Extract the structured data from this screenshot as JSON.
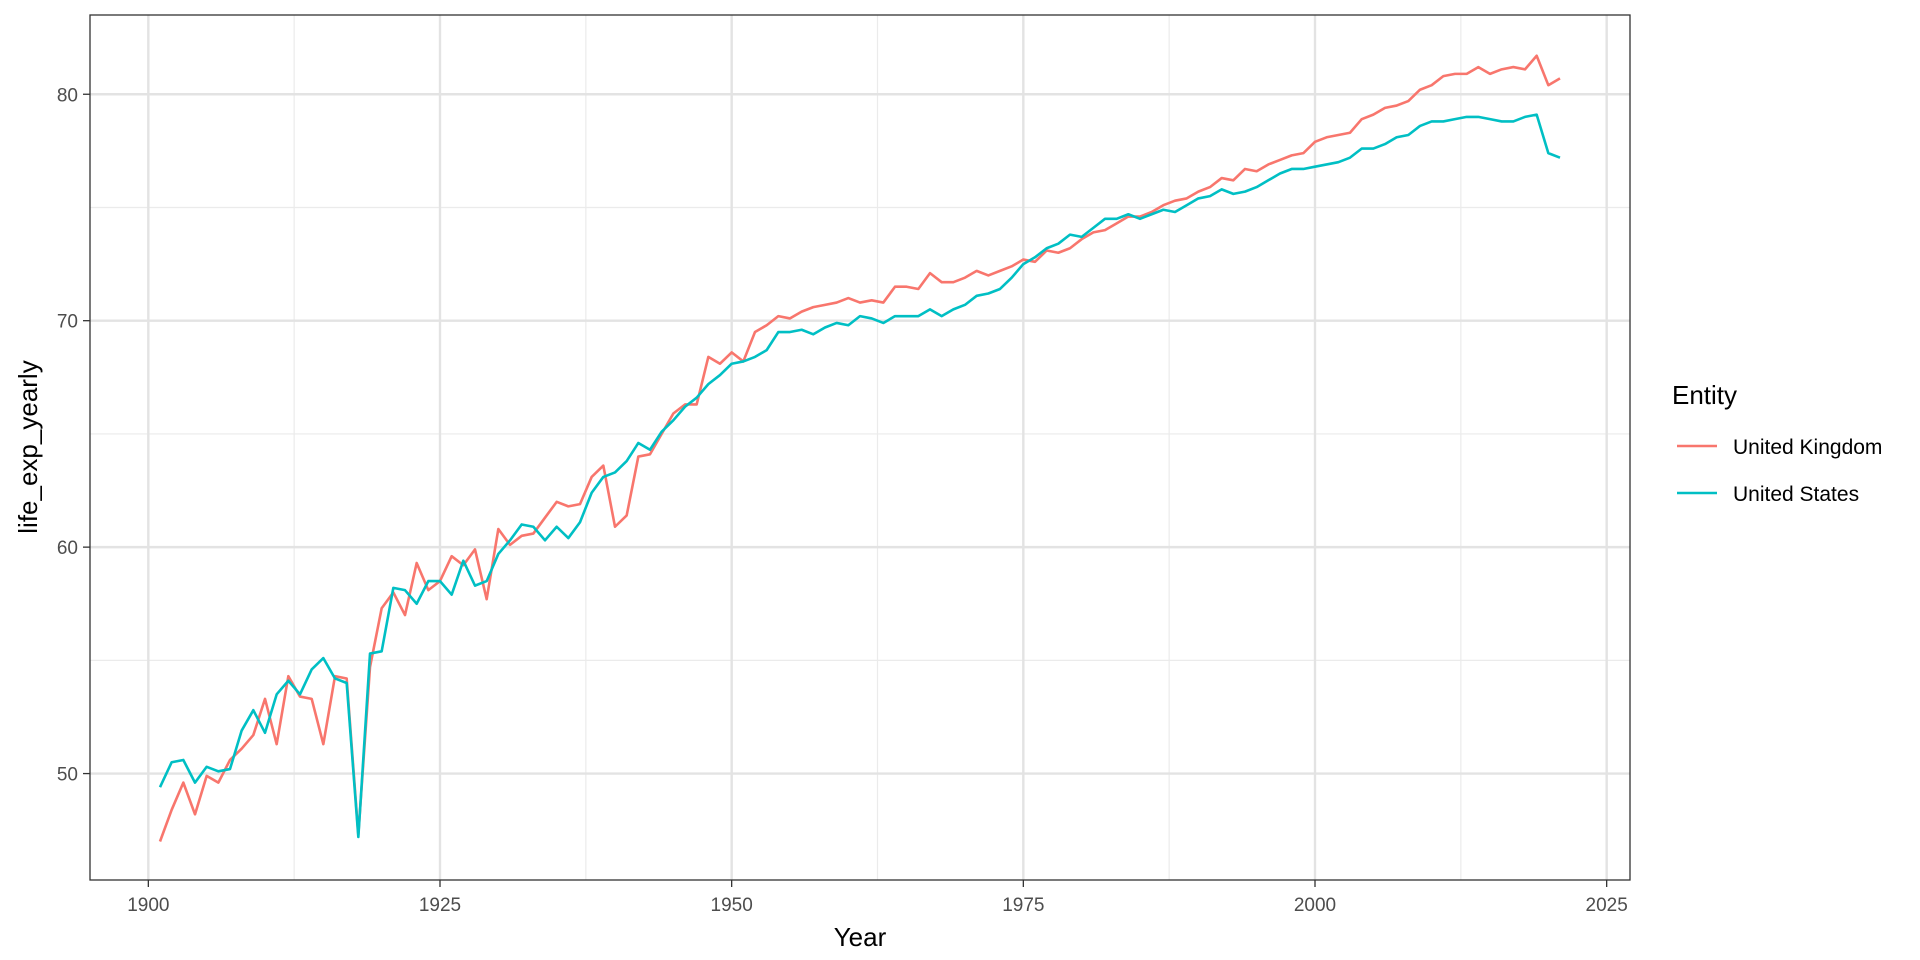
{
  "chart_data": {
    "type": "line",
    "title": "",
    "xlabel": "Year",
    "ylabel": "life_exp_yearly",
    "xlim": [
      1895,
      2027
    ],
    "ylim": [
      45.3,
      83.5
    ],
    "x_ticks": [
      1900,
      1925,
      1950,
      1975,
      2000,
      2025
    ],
    "y_ticks": [
      50,
      60,
      70,
      80
    ],
    "grid": true,
    "legend": {
      "title": "Entity",
      "position": "right"
    },
    "x": [
      1901,
      1902,
      1903,
      1904,
      1905,
      1906,
      1907,
      1908,
      1909,
      1910,
      1911,
      1912,
      1913,
      1914,
      1915,
      1916,
      1917,
      1918,
      1919,
      1920,
      1921,
      1922,
      1923,
      1924,
      1925,
      1926,
      1927,
      1928,
      1929,
      1930,
      1931,
      1932,
      1933,
      1934,
      1935,
      1936,
      1937,
      1938,
      1939,
      1940,
      1941,
      1942,
      1943,
      1944,
      1945,
      1946,
      1947,
      1948,
      1949,
      1950,
      1951,
      1952,
      1953,
      1954,
      1955,
      1956,
      1957,
      1958,
      1959,
      1960,
      1961,
      1962,
      1963,
      1964,
      1965,
      1966,
      1967,
      1968,
      1969,
      1970,
      1971,
      1972,
      1973,
      1974,
      1975,
      1976,
      1977,
      1978,
      1979,
      1980,
      1981,
      1982,
      1983,
      1984,
      1985,
      1986,
      1987,
      1988,
      1989,
      1990,
      1991,
      1992,
      1993,
      1994,
      1995,
      1996,
      1997,
      1998,
      1999,
      2000,
      2001,
      2002,
      2003,
      2004,
      2005,
      2006,
      2007,
      2008,
      2009,
      2010,
      2011,
      2012,
      2013,
      2014,
      2015,
      2016,
      2017,
      2018,
      2019,
      2020,
      2021
    ],
    "series": [
      {
        "name": "United Kingdom",
        "color": "#F8766D",
        "values": [
          47.0,
          48.4,
          49.6,
          48.2,
          49.9,
          49.6,
          50.6,
          51.1,
          51.7,
          53.3,
          51.3,
          54.3,
          53.4,
          53.3,
          51.3,
          54.3,
          54.2,
          47.3,
          54.7,
          57.3,
          58.0,
          57.0,
          59.3,
          58.1,
          58.5,
          59.6,
          59.2,
          59.9,
          57.7,
          60.8,
          60.1,
          60.5,
          60.6,
          61.3,
          62.0,
          61.8,
          61.9,
          63.1,
          63.6,
          60.9,
          61.4,
          64.0,
          64.1,
          65.0,
          65.9,
          66.3,
          66.3,
          68.4,
          68.1,
          68.6,
          68.2,
          69.5,
          69.8,
          70.2,
          70.1,
          70.4,
          70.6,
          70.7,
          70.8,
          71.0,
          70.8,
          70.9,
          70.8,
          71.5,
          71.5,
          71.4,
          72.1,
          71.7,
          71.7,
          71.9,
          72.2,
          72.0,
          72.2,
          72.4,
          72.7,
          72.6,
          73.1,
          73.0,
          73.2,
          73.6,
          73.9,
          74.0,
          74.3,
          74.6,
          74.6,
          74.8,
          75.1,
          75.3,
          75.4,
          75.7,
          75.9,
          76.3,
          76.2,
          76.7,
          76.6,
          76.9,
          77.1,
          77.3,
          77.4,
          77.9,
          78.1,
          78.2,
          78.3,
          78.9,
          79.1,
          79.4,
          79.5,
          79.7,
          80.2,
          80.4,
          80.8,
          80.9,
          80.9,
          81.2,
          80.9,
          81.1,
          81.2,
          81.1,
          81.7,
          80.4,
          80.7
        ]
      },
      {
        "name": "United States",
        "color": "#00BFC4",
        "values": [
          49.4,
          50.5,
          50.6,
          49.6,
          50.3,
          50.1,
          50.2,
          51.9,
          52.8,
          51.8,
          53.5,
          54.1,
          53.5,
          54.6,
          55.1,
          54.2,
          54.0,
          47.2,
          55.3,
          55.4,
          58.2,
          58.1,
          57.5,
          58.5,
          58.5,
          57.9,
          59.4,
          58.3,
          58.5,
          59.7,
          60.3,
          61.0,
          60.9,
          60.3,
          60.9,
          60.4,
          61.1,
          62.4,
          63.1,
          63.3,
          63.8,
          64.6,
          64.3,
          65.1,
          65.6,
          66.2,
          66.6,
          67.2,
          67.6,
          68.1,
          68.2,
          68.4,
          68.7,
          69.5,
          69.5,
          69.6,
          69.4,
          69.7,
          69.9,
          69.8,
          70.2,
          70.1,
          69.9,
          70.2,
          70.2,
          70.2,
          70.5,
          70.2,
          70.5,
          70.7,
          71.1,
          71.2,
          71.4,
          71.9,
          72.5,
          72.8,
          73.2,
          73.4,
          73.8,
          73.7,
          74.1,
          74.5,
          74.5,
          74.7,
          74.5,
          74.7,
          74.9,
          74.8,
          75.1,
          75.4,
          75.5,
          75.8,
          75.6,
          75.7,
          75.9,
          76.2,
          76.5,
          76.7,
          76.7,
          76.8,
          76.9,
          77.0,
          77.2,
          77.6,
          77.6,
          77.8,
          78.1,
          78.2,
          78.6,
          78.8,
          78.8,
          78.9,
          79.0,
          79.0,
          78.9,
          78.8,
          78.8,
          79.0,
          79.1,
          77.4,
          77.2
        ]
      }
    ]
  }
}
